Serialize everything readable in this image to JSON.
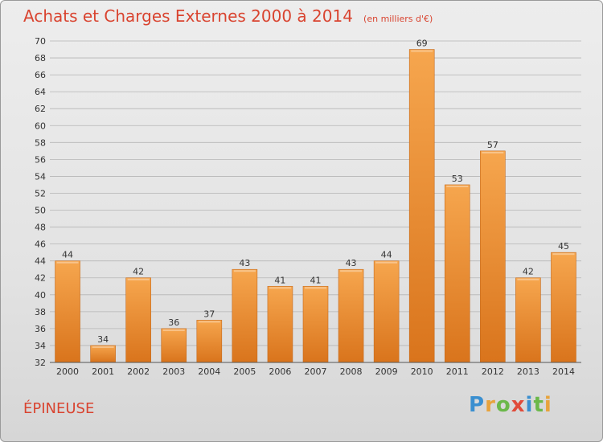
{
  "title": "Achats et Charges Externes 2000 à 2014",
  "subtitle": "(en milliers d'€)",
  "place": "ÉPINEUSE",
  "logo": {
    "letters": [
      {
        "ch": "P",
        "color": "#3a8fd0"
      },
      {
        "ch": "r",
        "color": "#e8a33b"
      },
      {
        "ch": "o",
        "color": "#6bb84a"
      },
      {
        "ch": "x",
        "color": "#e04b3a"
      },
      {
        "ch": "i",
        "color": "#3a8fd0"
      },
      {
        "ch": "t",
        "color": "#6bb84a"
      },
      {
        "ch": "i",
        "color": "#e8a33b"
      }
    ]
  },
  "colors": {
    "accent": "#d94430",
    "bar_light": "#f6a64e",
    "bar_dark": "#d9741c"
  },
  "chart_data": {
    "type": "bar",
    "title": "Achats et Charges Externes 2000 à 2014",
    "subtitle": "(en milliers d'€)",
    "categories": [
      "2000",
      "2001",
      "2002",
      "2003",
      "2004",
      "2005",
      "2006",
      "2007",
      "2008",
      "2009",
      "2010",
      "2011",
      "2012",
      "2013",
      "2014"
    ],
    "values": [
      44,
      34,
      42,
      36,
      37,
      43,
      41,
      41,
      43,
      44,
      69,
      53,
      57,
      42,
      45
    ],
    "ylim": [
      32,
      70
    ],
    "ytick_step": 2,
    "grid": true
  }
}
